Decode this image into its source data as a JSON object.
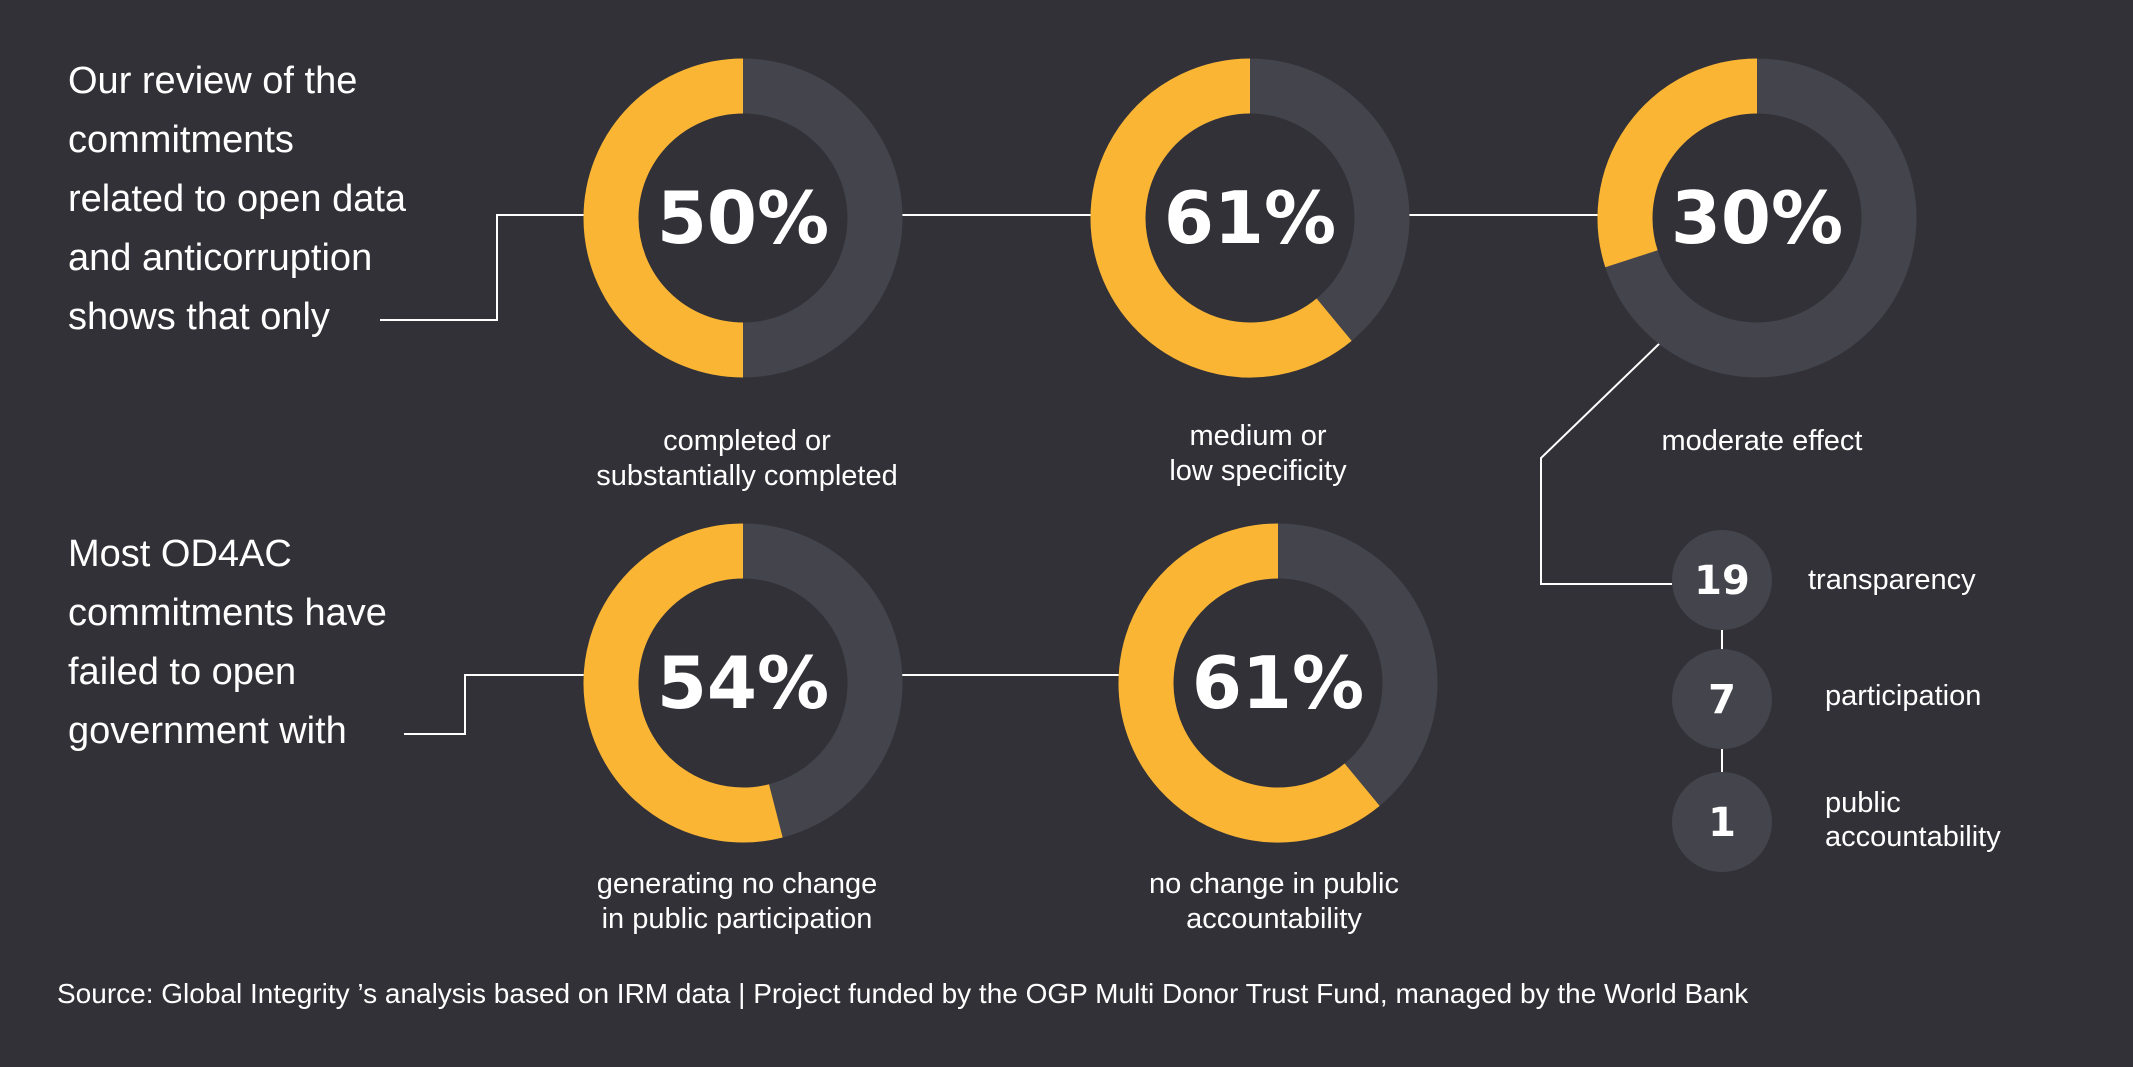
{
  "colors": {
    "background": "#313137",
    "accent": "#FBB534",
    "track": "#44444C",
    "line": "#FFFFFF",
    "text": "#FFFFFF"
  },
  "intro_top": "Our review of the\ncommitments\nrelated to open data\nand anticorruption\nshows that only",
  "intro_bottom": "Most OD4AC\ncommitments have\nfailed to open\ngovernment with",
  "chart_data": [
    {
      "type": "pie",
      "variant": "donut",
      "slices": [
        {
          "label": "completed or\nsubstantially completed",
          "value": 50
        }
      ],
      "value_label": "50%",
      "caption": "completed or\nsubstantially completed"
    },
    {
      "type": "pie",
      "variant": "donut",
      "slices": [
        {
          "label": "medium or\nlow specificity",
          "value": 61
        }
      ],
      "value_label": "61%",
      "caption": "medium or\nlow specificity"
    },
    {
      "type": "pie",
      "variant": "donut",
      "slices": [
        {
          "label": "moderate effect",
          "value": 30
        }
      ],
      "value_label": "30%",
      "caption": "moderate effect"
    },
    {
      "type": "pie",
      "variant": "donut",
      "slices": [
        {
          "label": "generating no change\nin public participation",
          "value": 54
        }
      ],
      "value_label": "54%",
      "caption": "generating no change\nin public participation"
    },
    {
      "type": "pie",
      "variant": "donut",
      "slices": [
        {
          "label": "no change in public\naccountability",
          "value": 61
        }
      ],
      "value_label": "61%",
      "caption": "no change in public\naccountability"
    }
  ],
  "breakdown": [
    {
      "count": "19",
      "label": "transparency"
    },
    {
      "count": "7",
      "label": "participation"
    },
    {
      "count": "1",
      "label": "public\naccountability"
    }
  ],
  "source": "Source: Global Integrity ’s analysis based on IRM data | Project funded by the OGP Multi Donor Trust Fund, managed by the World Bank"
}
